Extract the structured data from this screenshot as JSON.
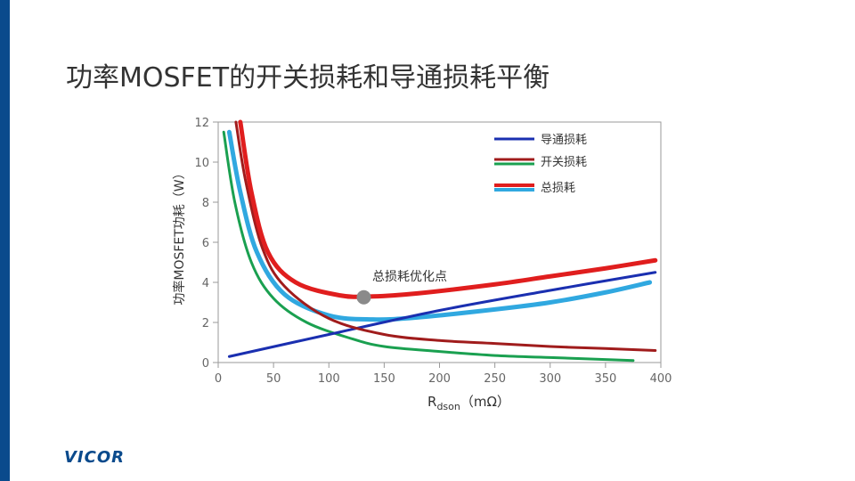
{
  "slide": {
    "title": "功率MOSFET的开关损耗和导通损耗平衡",
    "logo_text": "VICOR",
    "accent_color": "#0a4a8c"
  },
  "chart_data": {
    "type": "line",
    "title": "功率MOSFET的开关损耗和导通损耗平衡",
    "ylabel": "功率MOSFET功耗（W）",
    "xlabel_main": "R",
    "xlabel_sub": "dson",
    "xlabel_unit": "（mΩ）",
    "xlim": [
      0,
      400
    ],
    "ylim": [
      0,
      12
    ],
    "xticks": [
      0,
      50,
      100,
      150,
      200,
      250,
      300,
      350,
      400
    ],
    "yticks": [
      0,
      2,
      4,
      6,
      8,
      10,
      12
    ],
    "legend": [
      "导通损耗",
      "开关损耗",
      "总损耗"
    ],
    "series": [
      {
        "name": "导通损耗",
        "color": "#1a2fb0",
        "x": [
          10,
          100,
          200,
          300,
          395
        ],
        "y": [
          0.3,
          1.4,
          2.6,
          3.6,
          4.5
        ]
      },
      {
        "name": "开关损耗",
        "color": "#a01c1c",
        "x": [
          16,
          25,
          40,
          60,
          100,
          150,
          200,
          250,
          300,
          350,
          395
        ],
        "y": [
          12.0,
          9.0,
          5.7,
          3.8,
          2.2,
          1.4,
          1.1,
          0.95,
          0.8,
          0.7,
          0.6
        ]
      },
      {
        "name": "开关损耗",
        "color": "#1aa050",
        "x": [
          5,
          15,
          30,
          50,
          80,
          120,
          150,
          200,
          250,
          300,
          375
        ],
        "y": [
          11.5,
          8.0,
          5.0,
          3.2,
          2.0,
          1.2,
          0.8,
          0.55,
          0.35,
          0.25,
          0.1
        ]
      },
      {
        "name": "总损耗",
        "color": "#e01e1e",
        "x": [
          20,
          30,
          45,
          70,
          110,
          140,
          180,
          250,
          300,
          350,
          395
        ],
        "y": [
          12.0,
          8.5,
          5.5,
          4.0,
          3.35,
          3.3,
          3.45,
          3.9,
          4.3,
          4.7,
          5.1
        ]
      },
      {
        "name": "总损耗",
        "color": "#30a8e0",
        "x": [
          10,
          20,
          35,
          60,
          100,
          140,
          180,
          250,
          300,
          350,
          390
        ],
        "y": [
          11.5,
          8.5,
          5.5,
          3.4,
          2.35,
          2.15,
          2.25,
          2.65,
          3.0,
          3.5,
          4.0
        ]
      }
    ],
    "annotation": {
      "text": "总损耗优化点",
      "x": 138,
      "y": 3.3,
      "marker_color": "#8a8a8a"
    }
  }
}
